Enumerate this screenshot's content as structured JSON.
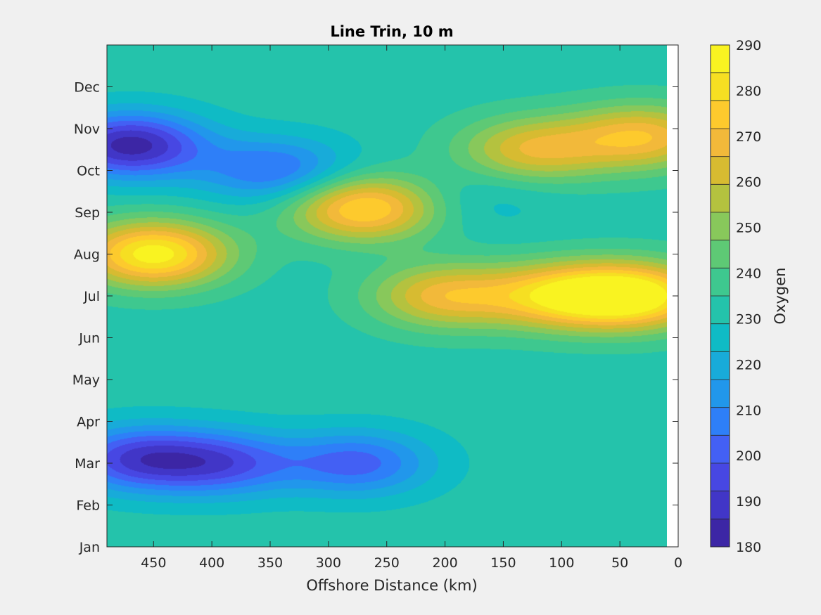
{
  "chart_data": {
    "type": "heatmap",
    "subtype": "filled-contour",
    "title": "Line Trin, 10 m",
    "xlabel": "Offshore Distance (km)",
    "ylabel": "",
    "x_reversed": true,
    "xlim": [
      490,
      0
    ],
    "x_ticks": [
      450,
      400,
      350,
      300,
      250,
      200,
      150,
      100,
      50,
      0
    ],
    "y_ticks": [
      "Jan",
      "Feb",
      "Mar",
      "Apr",
      "May",
      "Jun",
      "Jul",
      "Aug",
      "Sep",
      "Oct",
      "Nov",
      "Dec"
    ],
    "ylim_months": [
      0,
      12
    ],
    "data_extent_x": [
      490,
      10
    ],
    "colorbar": {
      "label": "Oxygen",
      "min": 180,
      "max": 290,
      "step": 5,
      "ticks": [
        180,
        190,
        200,
        210,
        220,
        230,
        240,
        250,
        260,
        270,
        280,
        290
      ],
      "colormap": "parula",
      "colors": [
        "#3c26a5",
        "#4136c7",
        "#4747e3",
        "#4360f4",
        "#2e7ff8",
        "#2197eb",
        "#18abd9",
        "#0fbbc5",
        "#24c3ab",
        "#3ec88f",
        "#5ec975",
        "#88c85b",
        "#b4c23f",
        "#d7bb31",
        "#f2b93a",
        "#fdca2d",
        "#f6df22",
        "#f9f321"
      ]
    },
    "features": [
      {
        "name": "aug-high-offshore",
        "x": 450,
        "month": 7.0,
        "value": 288
      },
      {
        "name": "sep-high",
        "x": 270,
        "month": 8.1,
        "value": 280
      },
      {
        "name": "jul-high-nearshore",
        "x": 35,
        "month": 6.0,
        "value": 286
      },
      {
        "name": "jul-high-100km",
        "x": 100,
        "month": 6.0,
        "value": 275
      },
      {
        "name": "jul-mid",
        "x": 200,
        "month": 6.0,
        "value": 268
      },
      {
        "name": "nov-low",
        "x": 470,
        "month": 9.6,
        "value": 183
      },
      {
        "name": "oct-low",
        "x": 345,
        "month": 9.0,
        "value": 203
      },
      {
        "name": "mar-low",
        "x": 465,
        "month": 2.1,
        "value": 195
      },
      {
        "name": "mar-low-2",
        "x": 390,
        "month": 2.0,
        "value": 200
      },
      {
        "name": "mar-low-3",
        "x": 275,
        "month": 2.0,
        "value": 202
      },
      {
        "name": "nov-high-nearshore",
        "x": 30,
        "month": 9.8,
        "value": 270
      },
      {
        "name": "nov-high-130km",
        "x": 125,
        "month": 9.5,
        "value": 265
      },
      {
        "name": "sep-low-170km",
        "x": 170,
        "month": 8.3,
        "value": 225
      }
    ]
  }
}
